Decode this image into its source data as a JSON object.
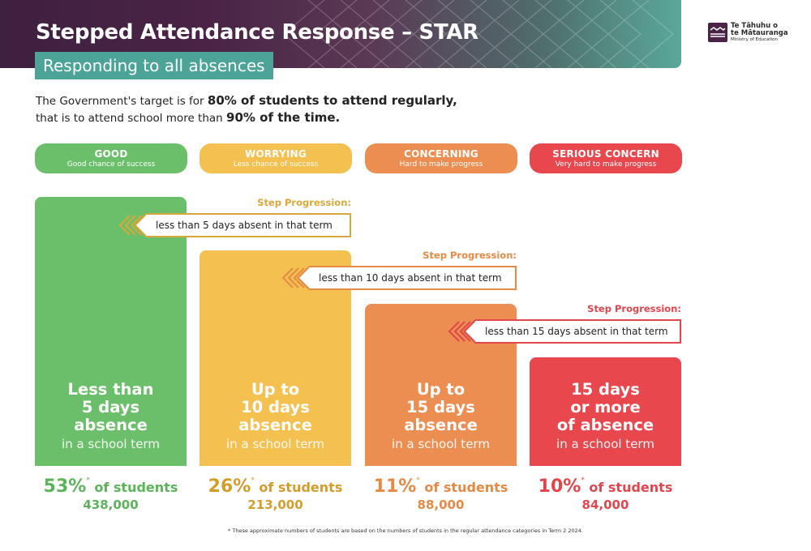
{
  "header": {
    "title": "Stepped Attendance Response – STAR",
    "subtitle": "Responding to all absences"
  },
  "logo": {
    "line1": "Te Tāhuhu o",
    "line2": "te Mātauranga",
    "line3": "Ministry of Education"
  },
  "intro": {
    "part1": "The Government's target is for ",
    "bold1": "80% of students to attend regularly,",
    "part2": "that is to attend school more than ",
    "bold2": "90% of the time."
  },
  "categories": [
    {
      "title": "GOOD",
      "subtitle": "Good chance of success",
      "color": "#6cbf6a"
    },
    {
      "title": "WORRYING",
      "subtitle": "Less chance of success",
      "color": "#f4c04f"
    },
    {
      "title": "CONCERNING",
      "subtitle": "Hard to make progress",
      "color": "#ec8e51"
    },
    {
      "title": "SERIOUS CONCERN",
      "subtitle": "Very hard to make progress",
      "color": "#e8474e"
    }
  ],
  "columns": [
    {
      "main_lines": [
        "Less than",
        "5 days",
        "absence"
      ],
      "sub": "in a school term"
    },
    {
      "main_lines": [
        "Up to",
        "10 days",
        "absence"
      ],
      "sub": "in a school term"
    },
    {
      "main_lines": [
        "Up to",
        "15 days",
        "absence"
      ],
      "sub": "in a school term"
    },
    {
      "main_lines": [
        "15 days",
        "or more",
        "of absence"
      ],
      "sub": "in a school term"
    }
  ],
  "steps": [
    {
      "label": "Step Progression:",
      "text": "less than 5 days absent in that term",
      "color": "#d9a83a"
    },
    {
      "label": "Step Progression:",
      "text": "less than 10 days absent in that term",
      "color": "#e58a45"
    },
    {
      "label": "Step Progression:",
      "text": "less than 15 days absent in that term",
      "color": "#e0464c"
    }
  ],
  "stats": [
    {
      "pct": "53%",
      "star": "*",
      "of": " of students",
      "count": "438,000",
      "color": "#5cb35a"
    },
    {
      "pct": "26%",
      "star": "*",
      "of": " of students",
      "count": "213,000",
      "color": "#d39d2c"
    },
    {
      "pct": "11%",
      "star": "*",
      "of": " of students",
      "count": "88,000",
      "color": "#e58a45"
    },
    {
      "pct": "10%",
      "star": "*",
      "of": " of students",
      "count": "84,000",
      "color": "#e0464c"
    }
  ],
  "footnote": "* These approximate numbers of students are based on the numbers of students in the regular attendance categories in Term 2 2024."
}
